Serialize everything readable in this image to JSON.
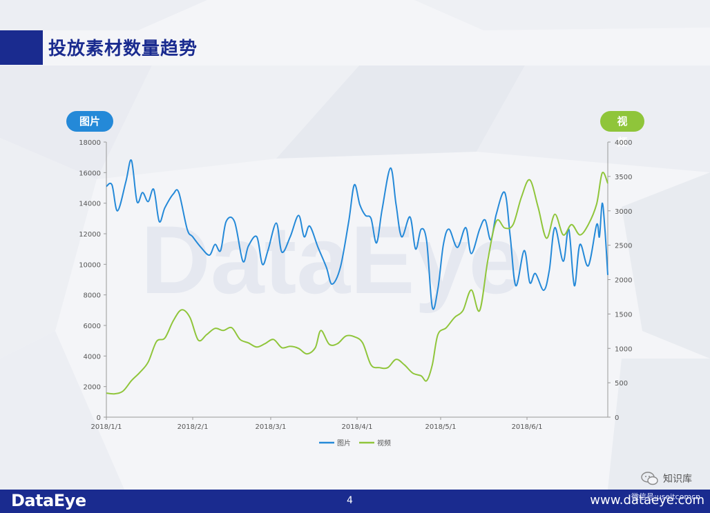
{
  "page": {
    "title": "投放素材数量趋势",
    "page_number": "4",
    "logo": "DataEye",
    "website": "www.dataeye.com",
    "watermark": "DataEye",
    "wechat_label": "知识库",
    "wechat_id": "微信号:useitcomcn",
    "colors": {
      "navy": "#1a2b8f",
      "image_series": "#2489d8",
      "video_series": "#8fc53a"
    }
  },
  "chart_data": {
    "type": "line",
    "title": "",
    "left_axis_badge": "图片",
    "right_axis_badge": "视频",
    "x_dates": [
      "2018/1/1",
      "2018/2/1",
      "2018/3/1",
      "2018/4/1",
      "2018/5/1",
      "2018/6/1"
    ],
    "x_tick_labels": [
      "2018/1/1",
      "2018/2/1",
      "2018/3/1",
      "2018/4/1",
      "2018/5/1",
      "2018/6/1"
    ],
    "x_range": [
      "2018/1/1",
      "2018/6/30"
    ],
    "y_left_range": [
      0,
      18000
    ],
    "y_left_ticks": [
      0,
      2000,
      4000,
      6000,
      8000,
      10000,
      12000,
      14000,
      16000,
      18000
    ],
    "y_right_range": [
      0,
      4000
    ],
    "y_right_ticks": [
      0,
      500,
      1000,
      1500,
      2000,
      2500,
      3000,
      3500,
      4000
    ],
    "grid": false,
    "legend_position": "bottom-center",
    "series": [
      {
        "name": "图片",
        "axis": "left",
        "points": [
          [
            "2018/1/1",
            15100
          ],
          [
            "2018/1/3",
            15200
          ],
          [
            "2018/1/5",
            13500
          ],
          [
            "2018/1/8",
            15400
          ],
          [
            "2018/1/10",
            16800
          ],
          [
            "2018/1/12",
            14100
          ],
          [
            "2018/1/14",
            14700
          ],
          [
            "2018/1/16",
            14100
          ],
          [
            "2018/1/18",
            14900
          ],
          [
            "2018/1/20",
            12800
          ],
          [
            "2018/1/22",
            13700
          ],
          [
            "2018/1/25",
            14600
          ],
          [
            "2018/1/27",
            14700
          ],
          [
            "2018/1/30",
            12300
          ],
          [
            "2018/2/1",
            11800
          ],
          [
            "2018/2/4",
            11100
          ],
          [
            "2018/2/7",
            10600
          ],
          [
            "2018/2/9",
            11300
          ],
          [
            "2018/2/11",
            10900
          ],
          [
            "2018/2/13",
            12800
          ],
          [
            "2018/2/16",
            12800
          ],
          [
            "2018/2/19",
            10200
          ],
          [
            "2018/2/21",
            11200
          ],
          [
            "2018/2/24",
            11800
          ],
          [
            "2018/2/26",
            10000
          ],
          [
            "2018/2/28",
            10900
          ],
          [
            "2018/3/3",
            12700
          ],
          [
            "2018/3/5",
            10800
          ],
          [
            "2018/3/8",
            11800
          ],
          [
            "2018/3/11",
            13200
          ],
          [
            "2018/3/13",
            11800
          ],
          [
            "2018/3/15",
            12500
          ],
          [
            "2018/3/18",
            11100
          ],
          [
            "2018/3/21",
            9800
          ],
          [
            "2018/3/23",
            8700
          ],
          [
            "2018/3/26",
            9800
          ],
          [
            "2018/3/29",
            12800
          ],
          [
            "2018/3/31",
            15200
          ],
          [
            "2018/4/2",
            13900
          ],
          [
            "2018/4/4",
            13200
          ],
          [
            "2018/4/6",
            13000
          ],
          [
            "2018/4/8",
            11400
          ],
          [
            "2018/4/10",
            13600
          ],
          [
            "2018/4/13",
            16300
          ],
          [
            "2018/4/15",
            13900
          ],
          [
            "2018/4/17",
            11800
          ],
          [
            "2018/4/20",
            13100
          ],
          [
            "2018/4/22",
            11000
          ],
          [
            "2018/4/24",
            12300
          ],
          [
            "2018/4/26",
            11500
          ],
          [
            "2018/4/28",
            7200
          ],
          [
            "2018/4/30",
            8400
          ],
          [
            "2018/5/2",
            11300
          ],
          [
            "2018/5/4",
            12300
          ],
          [
            "2018/5/7",
            11100
          ],
          [
            "2018/5/10",
            12400
          ],
          [
            "2018/5/12",
            10700
          ],
          [
            "2018/5/15",
            12300
          ],
          [
            "2018/5/17",
            12900
          ],
          [
            "2018/5/19",
            11600
          ],
          [
            "2018/5/21",
            13300
          ],
          [
            "2018/5/24",
            14700
          ],
          [
            "2018/5/26",
            11800
          ],
          [
            "2018/5/28",
            8600
          ],
          [
            "2018/5/31",
            10900
          ],
          [
            "2018/6/2",
            8800
          ],
          [
            "2018/6/4",
            9400
          ],
          [
            "2018/6/7",
            8300
          ],
          [
            "2018/6/9",
            9600
          ],
          [
            "2018/6/11",
            12400
          ],
          [
            "2018/6/14",
            10200
          ],
          [
            "2018/6/16",
            12300
          ],
          [
            "2018/6/18",
            8600
          ],
          [
            "2018/6/20",
            11300
          ],
          [
            "2018/6/23",
            9900
          ],
          [
            "2018/6/26",
            12600
          ],
          [
            "2018/6/27",
            11800
          ],
          [
            "2018/6/28",
            14000
          ],
          [
            "2018/6/29",
            12200
          ],
          [
            "2018/6/30",
            9300
          ]
        ]
      },
      {
        "name": "视频",
        "axis": "right",
        "points": [
          [
            "2018/1/1",
            350
          ],
          [
            "2018/1/4",
            340
          ],
          [
            "2018/1/7",
            380
          ],
          [
            "2018/1/10",
            530
          ],
          [
            "2018/1/13",
            650
          ],
          [
            "2018/1/16",
            800
          ],
          [
            "2018/1/19",
            1100
          ],
          [
            "2018/1/22",
            1150
          ],
          [
            "2018/1/25",
            1400
          ],
          [
            "2018/1/28",
            1560
          ],
          [
            "2018/1/31",
            1450
          ],
          [
            "2018/2/3",
            1120
          ],
          [
            "2018/2/6",
            1200
          ],
          [
            "2018/2/9",
            1290
          ],
          [
            "2018/2/12",
            1260
          ],
          [
            "2018/2/15",
            1300
          ],
          [
            "2018/2/18",
            1130
          ],
          [
            "2018/2/21",
            1080
          ],
          [
            "2018/2/24",
            1020
          ],
          [
            "2018/2/27",
            1070
          ],
          [
            "2018/3/2",
            1130
          ],
          [
            "2018/3/5",
            1010
          ],
          [
            "2018/3/8",
            1030
          ],
          [
            "2018/3/11",
            1000
          ],
          [
            "2018/3/14",
            920
          ],
          [
            "2018/3/17",
            1010
          ],
          [
            "2018/3/19",
            1260
          ],
          [
            "2018/3/22",
            1060
          ],
          [
            "2018/3/25",
            1070
          ],
          [
            "2018/3/28",
            1180
          ],
          [
            "2018/3/31",
            1170
          ],
          [
            "2018/4/3",
            1080
          ],
          [
            "2018/4/6",
            760
          ],
          [
            "2018/4/9",
            720
          ],
          [
            "2018/4/12",
            720
          ],
          [
            "2018/4/15",
            840
          ],
          [
            "2018/4/18",
            760
          ],
          [
            "2018/4/21",
            640
          ],
          [
            "2018/4/24",
            600
          ],
          [
            "2018/4/26",
            530
          ],
          [
            "2018/4/28",
            760
          ],
          [
            "2018/4/30",
            1200
          ],
          [
            "2018/5/3",
            1300
          ],
          [
            "2018/5/6",
            1450
          ],
          [
            "2018/5/9",
            1550
          ],
          [
            "2018/5/12",
            1850
          ],
          [
            "2018/5/15",
            1550
          ],
          [
            "2018/5/18",
            2300
          ],
          [
            "2018/5/21",
            2850
          ],
          [
            "2018/5/24",
            2750
          ],
          [
            "2018/5/27",
            2800
          ],
          [
            "2018/5/30",
            3200
          ],
          [
            "2018/6/2",
            3450
          ],
          [
            "2018/6/5",
            3050
          ],
          [
            "2018/6/8",
            2600
          ],
          [
            "2018/6/11",
            2950
          ],
          [
            "2018/6/14",
            2650
          ],
          [
            "2018/6/17",
            2800
          ],
          [
            "2018/6/20",
            2650
          ],
          [
            "2018/6/23",
            2800
          ],
          [
            "2018/6/26",
            3100
          ],
          [
            "2018/6/28",
            3550
          ],
          [
            "2018/6/30",
            3400
          ]
        ]
      }
    ]
  }
}
